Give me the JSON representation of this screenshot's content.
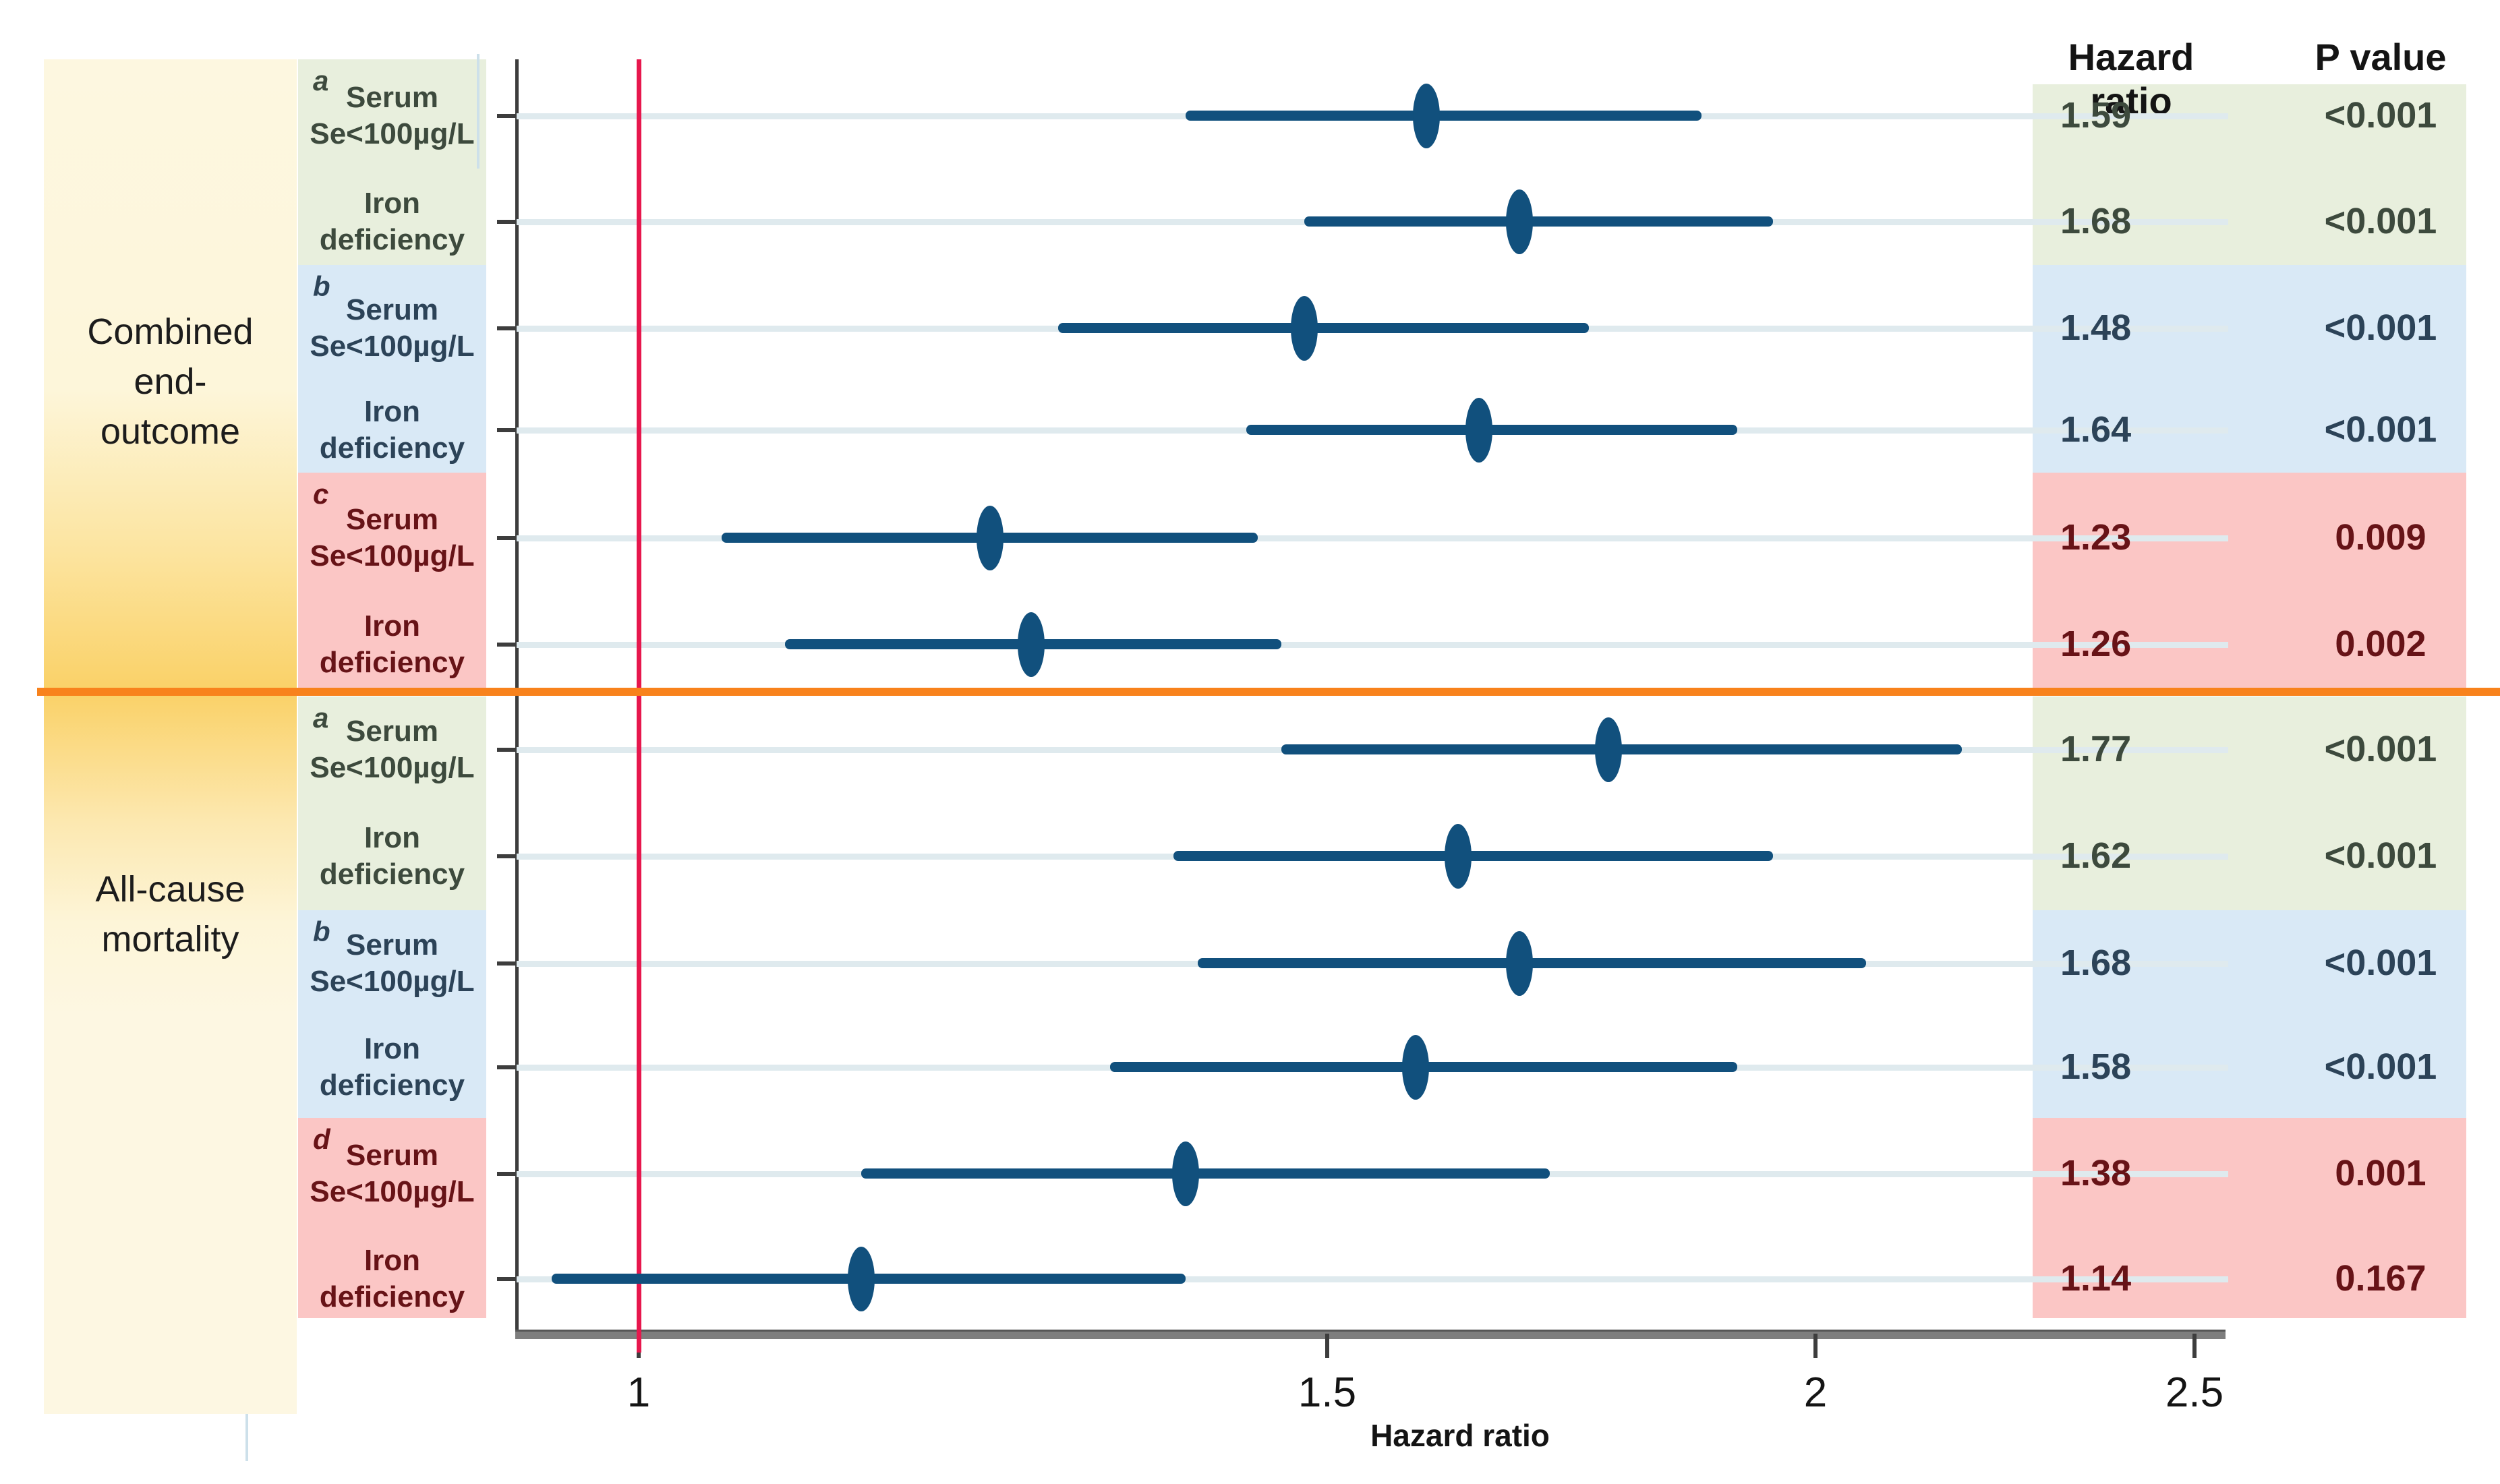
{
  "figure": {
    "kind": "forest plot",
    "x_axis_title": "Hazard ratio",
    "columns": {
      "hazard_ratio_header": "Hazard ratio",
      "p_value_header": "P value"
    },
    "axis": {
      "title": "Hazard ratio",
      "scale": "log",
      "reference_line_value": 1,
      "ticks": [
        {
          "label": "1",
          "value": 1.0
        },
        {
          "label": "1.5",
          "value": 1.5
        },
        {
          "label": "2",
          "value": 2.0
        },
        {
          "label": "2.5",
          "value": 2.5
        }
      ]
    },
    "sections": [
      {
        "id": "combined",
        "label_lines": [
          "Combined",
          "end-",
          "outcome"
        ]
      },
      {
        "id": "mortality",
        "label_lines": [
          "All-cause",
          "mortality"
        ]
      }
    ],
    "groups": [
      {
        "sup": "a",
        "palette": "green",
        "section": 0,
        "row_indexes": [
          0,
          1
        ]
      },
      {
        "sup": "b",
        "palette": "blue",
        "section": 0,
        "row_indexes": [
          2,
          3
        ]
      },
      {
        "sup": "c",
        "palette": "red",
        "section": 0,
        "row_indexes": [
          4,
          5
        ]
      },
      {
        "sup": "a",
        "palette": "green",
        "section": 1,
        "row_indexes": [
          6,
          7
        ]
      },
      {
        "sup": "b",
        "palette": "blue",
        "section": 1,
        "row_indexes": [
          8,
          9
        ]
      },
      {
        "sup": "d",
        "palette": "red",
        "section": 1,
        "row_indexes": [
          10,
          11
        ]
      }
    ],
    "rows": [
      {
        "label_lines": [
          "Serum",
          "Se<100µg/L"
        ],
        "hr": 1.59,
        "ci_low": 1.38,
        "ci_high": 1.87,
        "hr_text": "1.59",
        "p_text": "<0.001",
        "palette": "green"
      },
      {
        "label_lines": [
          "Iron",
          "deficiency"
        ],
        "hr": 1.68,
        "ci_low": 1.48,
        "ci_high": 1.95,
        "hr_text": "1.68",
        "p_text": "<0.001",
        "palette": "green"
      },
      {
        "label_lines": [
          "Serum",
          "Se<100µg/L"
        ],
        "hr": 1.48,
        "ci_low": 1.28,
        "ci_high": 1.75,
        "hr_text": "1.48",
        "p_text": "<0.001",
        "palette": "blue"
      },
      {
        "label_lines": [
          "Iron",
          "deficiency"
        ],
        "hr": 1.64,
        "ci_low": 1.43,
        "ci_high": 1.91,
        "hr_text": "1.64",
        "p_text": "<0.001",
        "palette": "blue"
      },
      {
        "label_lines": [
          "Serum",
          "Se<100µg/L"
        ],
        "hr": 1.23,
        "ci_low": 1.05,
        "ci_high": 1.44,
        "hr_text": "1.23",
        "p_text": "0.009",
        "palette": "red"
      },
      {
        "label_lines": [
          "Iron",
          "deficiency"
        ],
        "hr": 1.26,
        "ci_low": 1.09,
        "ci_high": 1.46,
        "hr_text": "1.26",
        "p_text": "0.002",
        "palette": "red"
      },
      {
        "label_lines": [
          "Serum",
          "Se<100µg/L"
        ],
        "hr": 1.77,
        "ci_low": 1.46,
        "ci_high": 2.18,
        "hr_text": "1.77",
        "p_text": "<0.001",
        "palette": "green"
      },
      {
        "label_lines": [
          "Iron",
          "deficiency"
        ],
        "hr": 1.62,
        "ci_low": 1.37,
        "ci_high": 1.95,
        "hr_text": "1.62",
        "p_text": "<0.001",
        "palette": "green"
      },
      {
        "label_lines": [
          "Serum",
          "Se<100µg/L"
        ],
        "hr": 1.68,
        "ci_low": 1.39,
        "ci_high": 2.06,
        "hr_text": "1.68",
        "p_text": "<0.001",
        "palette": "blue"
      },
      {
        "label_lines": [
          "Iron",
          "deficiency"
        ],
        "hr": 1.58,
        "ci_low": 1.32,
        "ci_high": 1.91,
        "hr_text": "1.58",
        "p_text": "<0.001",
        "palette": "blue"
      },
      {
        "label_lines": [
          "Serum",
          "Se<100µg/L"
        ],
        "hr": 1.38,
        "ci_low": 1.14,
        "ci_high": 1.71,
        "hr_text": "1.38",
        "p_text": "0.001",
        "palette": "red"
      },
      {
        "label_lines": [
          "Iron",
          "deficiency"
        ],
        "hr": 1.14,
        "ci_low": 0.95,
        "ci_high": 1.38,
        "hr_text": "1.14",
        "p_text": "0.167",
        "palette": "red"
      }
    ],
    "colors": {
      "green_bg": "#e8efdd",
      "green_text": "#3d4a3d",
      "blue_bg": "#d9e9f6",
      "blue_text": "#2c4358",
      "red_bg": "#fbc6c5",
      "red_text": "#671317",
      "yellow_band_light": "#fdf7e0",
      "yellow_band_deep": "#fad167",
      "marker": "#11507d",
      "ci_line": "#11507d",
      "reference_line": "#e7174d",
      "section_divider": "#f8821c",
      "gridline": "#dfeaee",
      "axis_border": "#3d3d3d",
      "bottom_axis": "#7e7e7e"
    }
  },
  "chart_data": {
    "type": "scatter",
    "variant": "forest_plot_with_horizontal_CI_bars",
    "title": "",
    "xlabel": "Hazard ratio",
    "ylabel": "",
    "x_scale": "log",
    "x_ticks": [
      1,
      1.5,
      2,
      2.5
    ],
    "xlim": [
      0.93,
      2.55
    ],
    "reference_line_x": 1,
    "legend_position": "none",
    "grid": "horizontal rows only",
    "value_columns": [
      "Hazard ratio",
      "P value"
    ],
    "series": [
      {
        "section": "Combined end-outcome",
        "model": "a",
        "label": "Serum Se<100µg/L",
        "hr": 1.59,
        "ci": [
          1.38,
          1.87
        ],
        "p": "<0.001"
      },
      {
        "section": "Combined end-outcome",
        "model": "a",
        "label": "Iron deficiency",
        "hr": 1.68,
        "ci": [
          1.48,
          1.95
        ],
        "p": "<0.001"
      },
      {
        "section": "Combined end-outcome",
        "model": "b",
        "label": "Serum Se<100µg/L",
        "hr": 1.48,
        "ci": [
          1.28,
          1.75
        ],
        "p": "<0.001"
      },
      {
        "section": "Combined end-outcome",
        "model": "b",
        "label": "Iron deficiency",
        "hr": 1.64,
        "ci": [
          1.43,
          1.91
        ],
        "p": "<0.001"
      },
      {
        "section": "Combined end-outcome",
        "model": "c",
        "label": "Serum Se<100µg/L",
        "hr": 1.23,
        "ci": [
          1.05,
          1.44
        ],
        "p": "0.009"
      },
      {
        "section": "Combined end-outcome",
        "model": "c",
        "label": "Iron deficiency",
        "hr": 1.26,
        "ci": [
          1.09,
          1.46
        ],
        "p": "0.002"
      },
      {
        "section": "All-cause mortality",
        "model": "a",
        "label": "Serum Se<100µg/L",
        "hr": 1.77,
        "ci": [
          1.46,
          2.18
        ],
        "p": "<0.001"
      },
      {
        "section": "All-cause mortality",
        "model": "a",
        "label": "Iron deficiency",
        "hr": 1.62,
        "ci": [
          1.37,
          1.95
        ],
        "p": "<0.001"
      },
      {
        "section": "All-cause mortality",
        "model": "b",
        "label": "Serum Se<100µg/L",
        "hr": 1.68,
        "ci": [
          1.39,
          2.06
        ],
        "p": "<0.001"
      },
      {
        "section": "All-cause mortality",
        "model": "b",
        "label": "Iron deficiency",
        "hr": 1.58,
        "ci": [
          1.32,
          1.91
        ],
        "p": "<0.001"
      },
      {
        "section": "All-cause mortality",
        "model": "d",
        "label": "Serum Se<100µg/L",
        "hr": 1.38,
        "ci": [
          1.14,
          1.71
        ],
        "p": "0.001"
      },
      {
        "section": "All-cause mortality",
        "model": "d",
        "label": "Iron deficiency",
        "hr": 1.14,
        "ci": [
          0.95,
          1.38
        ],
        "p": "0.167"
      }
    ]
  }
}
